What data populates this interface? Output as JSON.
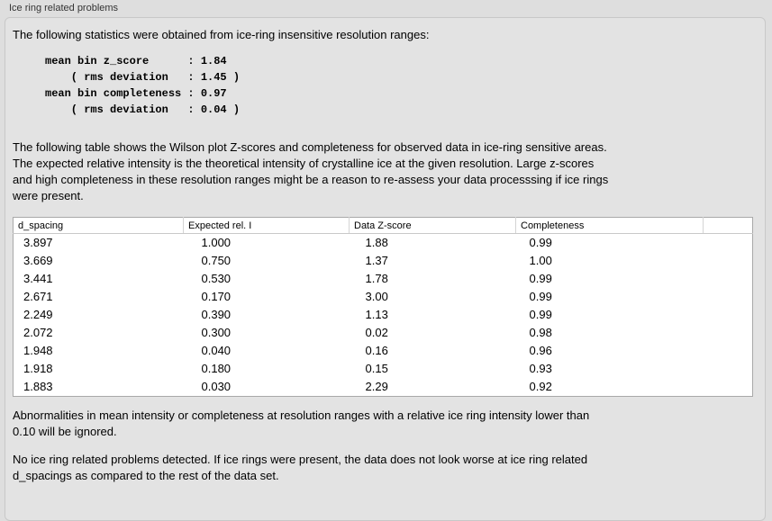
{
  "group": {
    "label": "Ice ring related problems"
  },
  "colors": {
    "panel_bg": "#e3e3e3",
    "page_bg": "#dedede",
    "table_bg": "#ffffff",
    "table_border": "#a9a9a9"
  },
  "intro": "The following statistics were obtained from ice-ring insensitive resolution ranges:",
  "stats": {
    "lines": [
      "mean bin z_score      : 1.84",
      "    ( rms deviation   : 1.45 )",
      "mean bin completeness : 0.97",
      "    ( rms deviation   : 0.04 )"
    ]
  },
  "table_intro": "The following table shows the Wilson plot Z-scores and completeness for observed data in ice-ring sensitive areas.\nThe expected relative intensity is the theoretical intensity of crystalline ice at the given resolution. Large z-scores\nand high completeness in these resolution ranges might be a reason to re-assess your data processsing if ice rings\nwere present.",
  "table": {
    "columns": [
      "d_spacing",
      "Expected rel. I",
      "Data Z-score",
      "Completeness"
    ],
    "rows": [
      [
        "3.897",
        "1.000",
        "1.88",
        "0.99"
      ],
      [
        "3.669",
        "0.750",
        "1.37",
        "1.00"
      ],
      [
        "3.441",
        "0.530",
        "1.78",
        "0.99"
      ],
      [
        "2.671",
        "0.170",
        "3.00",
        "0.99"
      ],
      [
        "2.249",
        "0.390",
        "1.13",
        "0.99"
      ],
      [
        "2.072",
        "0.300",
        "0.02",
        "0.98"
      ],
      [
        "1.948",
        "0.040",
        "0.16",
        "0.96"
      ],
      [
        "1.918",
        "0.180",
        "0.15",
        "0.93"
      ],
      [
        "1.883",
        "0.030",
        "2.29",
        "0.92"
      ]
    ]
  },
  "notes": {
    "ignore_note": "Abnormalities in mean intensity or completeness at resolution ranges with a relative ice ring intensity lower than\n0.10 will be ignored.",
    "conclusion": "No ice ring related problems detected. If ice rings were present, the data does not look worse at ice ring related\nd_spacings as compared to the rest of the data set."
  }
}
